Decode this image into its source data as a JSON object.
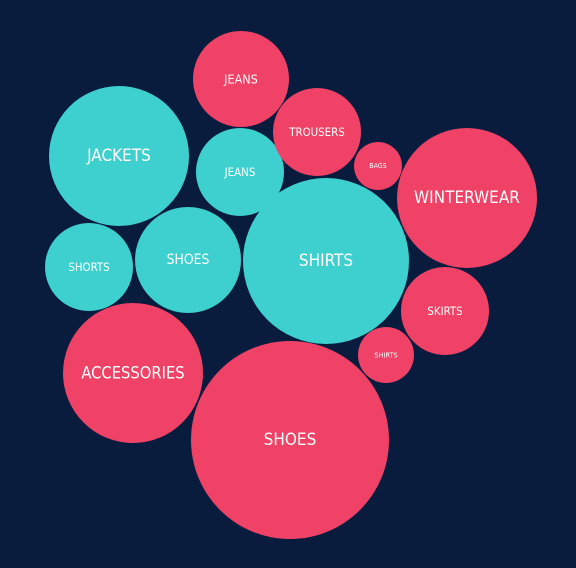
{
  "colors": {
    "background": "#0a1c3d",
    "teal": "#3ecfcf",
    "pink": "#ef4266",
    "label": "#ffffff"
  },
  "chart_data": {
    "type": "bubble",
    "title": "",
    "legend": "none",
    "bubbles": [
      {
        "label": "JEANS",
        "value": 48,
        "group": "pink"
      },
      {
        "label": "JACKETS",
        "value": 70,
        "group": "teal"
      },
      {
        "label": "JEANS",
        "value": 44,
        "group": "teal"
      },
      {
        "label": "TROUSERS",
        "value": 44,
        "group": "pink"
      },
      {
        "label": "BAGS",
        "value": 24,
        "group": "pink"
      },
      {
        "label": "WINTERWEAR",
        "value": 70,
        "group": "pink"
      },
      {
        "label": "SHORTS",
        "value": 44,
        "group": "teal"
      },
      {
        "label": "SHOES",
        "value": 53,
        "group": "teal"
      },
      {
        "label": "SHIRTS",
        "value": 83,
        "group": "teal"
      },
      {
        "label": "SKIRTS",
        "value": 44,
        "group": "pink"
      },
      {
        "label": "SHIRTS",
        "value": 28,
        "group": "pink"
      },
      {
        "label": "ACCESSORIES",
        "value": 70,
        "group": "pink"
      },
      {
        "label": "SHOES",
        "value": 99,
        "group": "pink"
      }
    ]
  }
}
